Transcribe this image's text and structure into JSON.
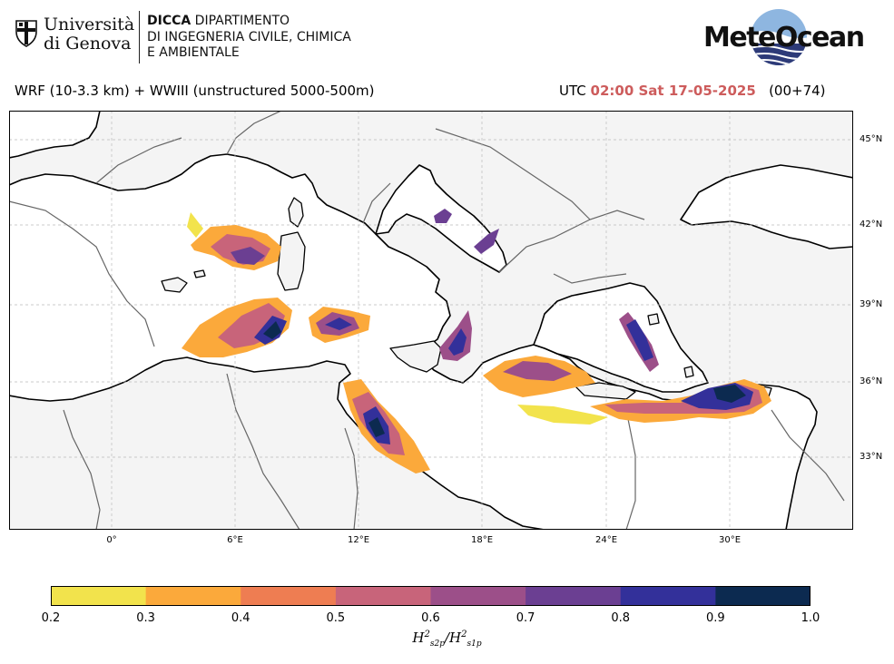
{
  "header": {
    "university_line1": "Università",
    "university_line2": "di Genova",
    "dept_line1_bold": "DICCA",
    "dept_line1_rest": " DIPARTIMENTO",
    "dept_line2": "DI INGEGNERIA CIVILE, CHIMICA",
    "dept_line3": "E AMBIENTALE",
    "brand": "MeteOcean"
  },
  "title": {
    "model": "WRF (10-3.3 km) + WWIII (unstructured 5000-500m)",
    "utc_prefix": "UTC",
    "datetime": "02:00 Sat 17-05-2025",
    "lead": "(00+74)",
    "datetime_color": "#cd5c5c"
  },
  "map": {
    "latitude_labels": [
      "45°N",
      "42°N",
      "39°N",
      "36°N",
      "33°N"
    ],
    "longitude_labels": [
      "0°",
      "6°E",
      "12°E",
      "18°E",
      "24°E",
      "30°E"
    ],
    "land_color": "#f4f4f4",
    "sea_color": "#ffffff",
    "coastline_color": "#000000",
    "border_color": "#666666"
  },
  "colorbar": {
    "ticks": [
      "0.2",
      "0.3",
      "0.4",
      "0.5",
      "0.6",
      "0.7",
      "0.8",
      "0.9",
      "1.0"
    ],
    "colors": [
      "#f2e34c",
      "#fba93b",
      "#ee7d52",
      "#c8647a",
      "#9c4f89",
      "#6b3f92",
      "#33309a",
      "#0c2a50"
    ],
    "label": "H²s2p/H²s1p"
  }
}
